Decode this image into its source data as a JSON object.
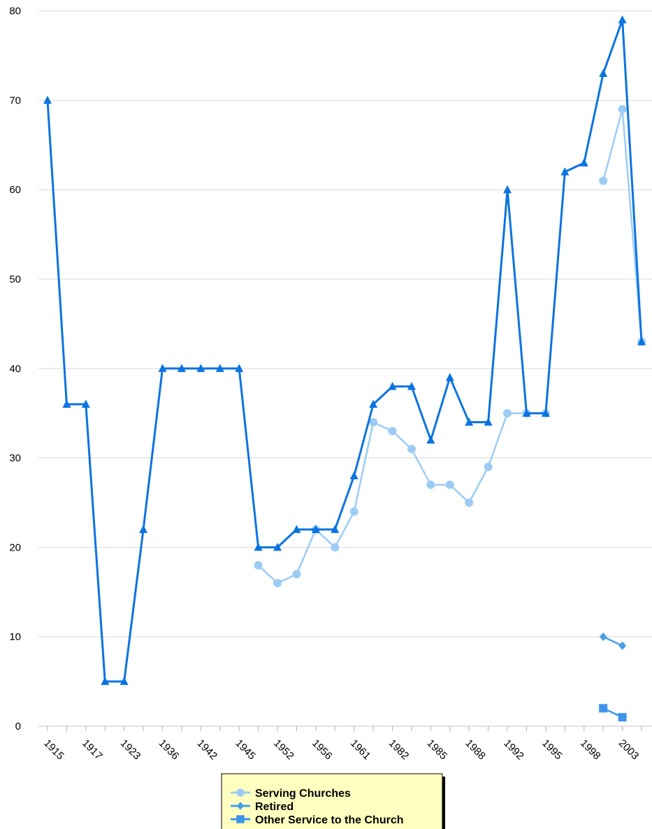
{
  "chart_data": {
    "type": "line",
    "title": "",
    "xlabel": "",
    "ylabel": "",
    "ylim": [
      0,
      80
    ],
    "yticks": [
      0,
      10,
      20,
      30,
      40,
      50,
      60,
      70,
      80
    ],
    "grid": true,
    "legend_position": "bottom-center",
    "x": [
      "1915",
      "",
      "1917",
      "",
      "1923",
      "",
      "1936",
      "",
      "1942",
      "",
      "1945",
      "",
      "1952",
      "",
      "1956",
      "",
      "1961",
      "",
      "1982",
      "",
      "1985",
      "",
      "1988",
      "",
      "1992",
      "",
      "1995",
      "",
      "1998",
      "",
      "2003",
      ""
    ],
    "x_tick_labels": [
      "1915",
      "1917",
      "1923",
      "1936",
      "1942",
      "1945",
      "1952",
      "1956",
      "1961",
      "1982",
      "1985",
      "1988",
      "1992",
      "1995",
      "1998",
      "2003"
    ],
    "series": [
      {
        "name": "",
        "marker": "triangle",
        "color": "#0a74e0",
        "values": [
          70,
          36,
          36,
          5,
          5,
          22,
          40,
          40,
          40,
          40,
          40,
          20,
          20,
          22,
          22,
          22,
          28,
          36,
          38,
          38,
          32,
          39,
          34,
          34,
          60,
          35,
          35,
          62,
          63,
          73,
          79,
          43
        ]
      },
      {
        "name": "Serving Churches",
        "marker": "circle",
        "color": "#9cccf5",
        "values": [
          null,
          null,
          null,
          null,
          null,
          null,
          null,
          null,
          null,
          null,
          null,
          18,
          16,
          17,
          22,
          20,
          24,
          34,
          33,
          31,
          27,
          27,
          25,
          29,
          35,
          35,
          35,
          null,
          null,
          61,
          69,
          43
        ]
      },
      {
        "name": "Retired",
        "marker": "diamond",
        "color": "#4a9ee8",
        "values": [
          null,
          null,
          null,
          null,
          null,
          null,
          null,
          null,
          null,
          null,
          null,
          null,
          null,
          null,
          null,
          null,
          null,
          null,
          null,
          null,
          null,
          null,
          null,
          null,
          null,
          null,
          null,
          null,
          null,
          10,
          9,
          null
        ]
      },
      {
        "name": "Other Service to the Church",
        "marker": "square",
        "color": "#3d94ec",
        "values": [
          null,
          null,
          null,
          null,
          null,
          null,
          null,
          null,
          null,
          null,
          null,
          null,
          null,
          null,
          null,
          null,
          null,
          null,
          null,
          null,
          null,
          null,
          null,
          null,
          null,
          null,
          null,
          null,
          null,
          2,
          1,
          null
        ]
      }
    ]
  }
}
